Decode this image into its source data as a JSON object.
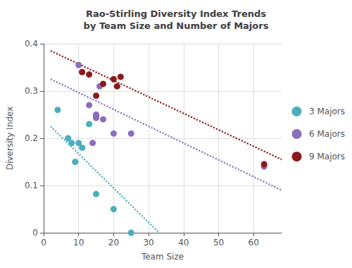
{
  "chart_data": {
    "type": "scatter",
    "title": "Rao-Stirling Diversity Index Trends\nby Team Size and Number of Majors",
    "x_label": "Team Size",
    "y_label": "Diversity Index",
    "xlim": [
      0,
      68
    ],
    "ylim": [
      0,
      0.4
    ],
    "xticks": [
      0,
      10,
      20,
      30,
      40,
      50,
      60
    ],
    "yticks": [
      0,
      0.1,
      0.2,
      0.3,
      0.4
    ],
    "grid": true,
    "legend": "right",
    "series": [
      {
        "name": "3 Majors",
        "color": "#4AAFBA",
        "x": [
          4,
          7,
          8,
          9,
          10,
          11,
          13,
          15,
          20,
          25
        ],
        "values": [
          0.26,
          0.2,
          0.19,
          0.15,
          0.19,
          0.18,
          0.23,
          0.082,
          0.05,
          0.0
        ],
        "trend": {
          "x": [
            2,
            33
          ],
          "values": [
            0.225,
            0.0
          ],
          "line_style": "dotted"
        }
      },
      {
        "name": "6 Majors",
        "color": "#8B6FBE",
        "x": [
          10,
          11,
          13,
          14,
          15,
          15,
          15,
          15,
          16,
          17,
          20,
          25,
          63
        ],
        "values": [
          0.355,
          0.34,
          0.27,
          0.19,
          0.25,
          0.248,
          0.245,
          0.243,
          0.31,
          0.24,
          0.21,
          0.21,
          0.14
        ],
        "trend": {
          "x": [
            2,
            68
          ],
          "values": [
            0.325,
            0.09
          ],
          "line_style": "dotted"
        }
      },
      {
        "name": "9 Majors",
        "color": "#8B1A1A",
        "x": [
          11,
          13,
          15,
          17,
          20,
          21,
          22,
          63
        ],
        "values": [
          0.34,
          0.335,
          0.29,
          0.315,
          0.325,
          0.31,
          0.33,
          0.145
        ],
        "trend": {
          "x": [
            2,
            68
          ],
          "values": [
            0.385,
            0.155
          ],
          "line_style": "dotted"
        }
      }
    ]
  }
}
